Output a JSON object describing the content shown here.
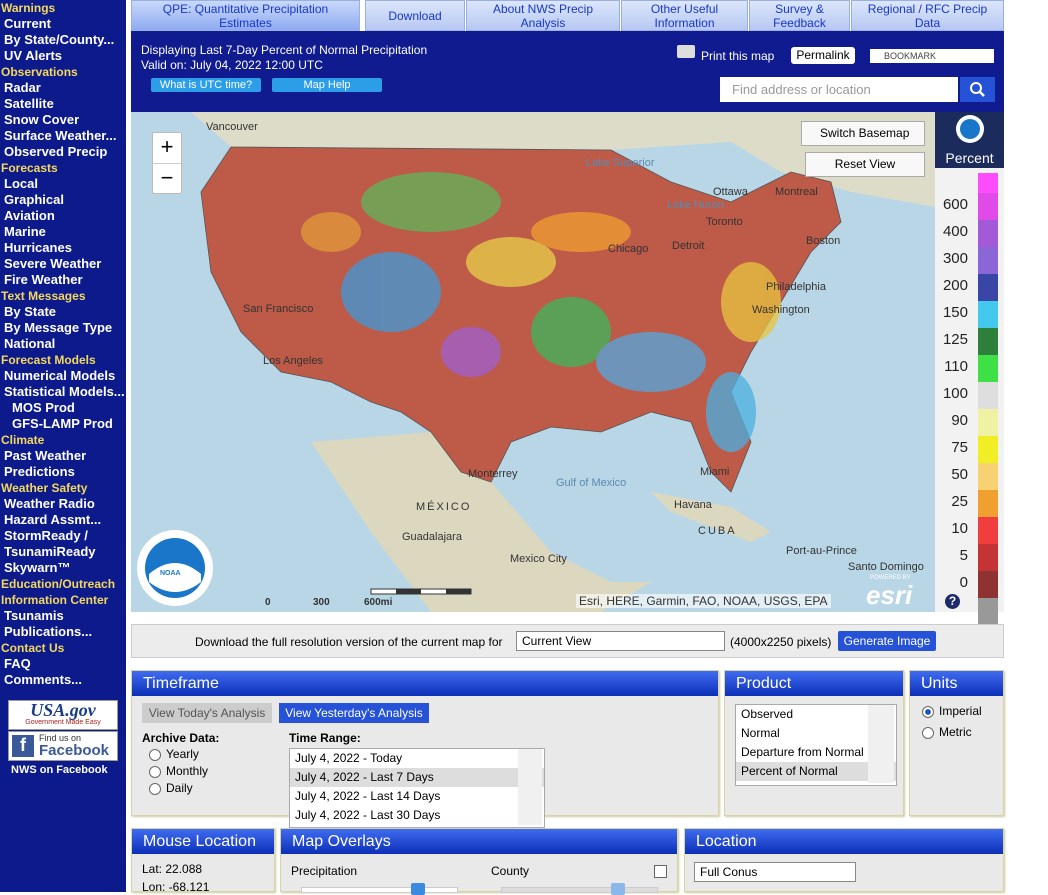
{
  "tabs": [
    "QPE: Quantitative Precipitation Estimates",
    "Download",
    "About NWS Precip Analysis",
    "Other Useful Information",
    "Survey & Feedback",
    "Regional / RFC Precip Data"
  ],
  "sidebar": [
    {
      "heading": "Warnings",
      "links": [
        "Current",
        "By State/County...",
        "UV Alerts"
      ]
    },
    {
      "heading": "Observations",
      "links": [
        "Radar",
        "Satellite",
        "Snow Cover",
        "Surface Weather...",
        "Observed Precip"
      ]
    },
    {
      "heading": "Forecasts",
      "links": [
        "Local",
        "Graphical",
        "Aviation",
        "Marine",
        "Hurricanes",
        "Severe Weather",
        "Fire Weather"
      ]
    },
    {
      "heading": "Text Messages",
      "links": [
        "By State",
        "By Message Type",
        "National"
      ]
    },
    {
      "heading": "Forecast Models",
      "links": [
        "Numerical Models",
        "Statistical Models..."
      ],
      "sublinks": [
        "MOS Prod",
        "GFS-LAMP Prod"
      ]
    },
    {
      "heading": "Climate",
      "links": [
        "Past Weather",
        "Predictions"
      ]
    },
    {
      "heading": "Weather Safety",
      "links": [
        "Weather Radio",
        "Hazard Assmt...",
        "StormReady / TsunamiReady",
        "Skywarn™"
      ]
    },
    {
      "heading": "Education/Outreach Information Center",
      "links": [
        "Tsunamis",
        "Publications..."
      ]
    },
    {
      "heading": "Contact Us",
      "links": [
        "FAQ",
        "Comments..."
      ]
    }
  ],
  "badges": {
    "usagov": "USA.gov",
    "usagov_sub": "Government Made Easy",
    "facebook_top": "Find us on",
    "facebook": "Facebook",
    "caption": "NWS on Facebook"
  },
  "header": {
    "title": "Displaying Last 7-Day Percent of Normal Precipitation",
    "valid": "Valid on: July 04, 2022 12:00 UTC",
    "utc_button": "What is UTC time?",
    "help_button": "Map Help",
    "print": "Print this map",
    "permalink": "Permalink",
    "bookmark": "BOOKMARK",
    "search_placeholder": "Find address or location"
  },
  "map": {
    "zoom_in": "+",
    "zoom_out": "−",
    "switch_basemap": "Switch Basemap",
    "reset_view": "Reset View",
    "scale": [
      "0",
      "300",
      "600mi"
    ],
    "attribution": "Esri, HERE, Garmin, FAO, NOAA, USGS, EPA",
    "powered_by": "POWERED BY",
    "esri": "esri",
    "noaa": "NOAA",
    "labels": [
      "Vancouver",
      "Ottawa",
      "Montreal",
      "Toronto",
      "Lake Huron",
      "Lake Superior",
      "Boston",
      "Detroit",
      "Chicago",
      "Philadelphia",
      "Washington",
      "San Francisco",
      "Los Angeles",
      "Miami",
      "Monterrey",
      "Gulf of Mexico",
      "MÉXICO",
      "Guadalajara",
      "Mexico City",
      "Havana",
      "CUBA",
      "Port-au-Prince",
      "Santo Domingo"
    ]
  },
  "legend": {
    "title": "Percent",
    "values": [
      600,
      400,
      300,
      200,
      150,
      125,
      110,
      100,
      90,
      75,
      50,
      25,
      10,
      5,
      0
    ],
    "colors": [
      "#e04ae8",
      "#a45ad8",
      "#8a66d6",
      "#3a46a6",
      "#44c8ee",
      "#2f7f3c",
      "#3fe046",
      "#dedede",
      "#eef2a2",
      "#f2ee26",
      "#f6d272",
      "#f0a030",
      "#f03e3e",
      "#c43434",
      "#8e3232"
    ]
  },
  "download": {
    "text": "Download the full resolution version of the current map for",
    "select": "Current View",
    "size": "(4000x2250 pixels)",
    "button": "Generate Image"
  },
  "timeframe": {
    "title": "Timeframe",
    "today": "View Today's Analysis",
    "yesterday": "View Yesterday's Analysis",
    "archive": "Archive Data:",
    "options": [
      "Yearly",
      "Monthly",
      "Daily"
    ],
    "range_label": "Time Range:",
    "ranges": [
      "July 4, 2022 - Today",
      "July 4, 2022 - Last 7 Days",
      "July 4, 2022 - Last 14 Days",
      "July 4, 2022 - Last 30 Days"
    ]
  },
  "product": {
    "title": "Product",
    "items": [
      "Observed",
      "Normal",
      "Departure from Normal",
      "Percent of Normal"
    ]
  },
  "units": {
    "title": "Units",
    "options": [
      "Imperial",
      "Metric"
    ]
  },
  "mouse_location": {
    "title": "Mouse Location",
    "lat": "Lat: 22.088",
    "lon": "Lon: -68.121"
  },
  "overlays": {
    "title": "Map Overlays",
    "precipitation": "Precipitation",
    "county": "County"
  },
  "location": {
    "title": "Location",
    "select": "Full Conus"
  }
}
